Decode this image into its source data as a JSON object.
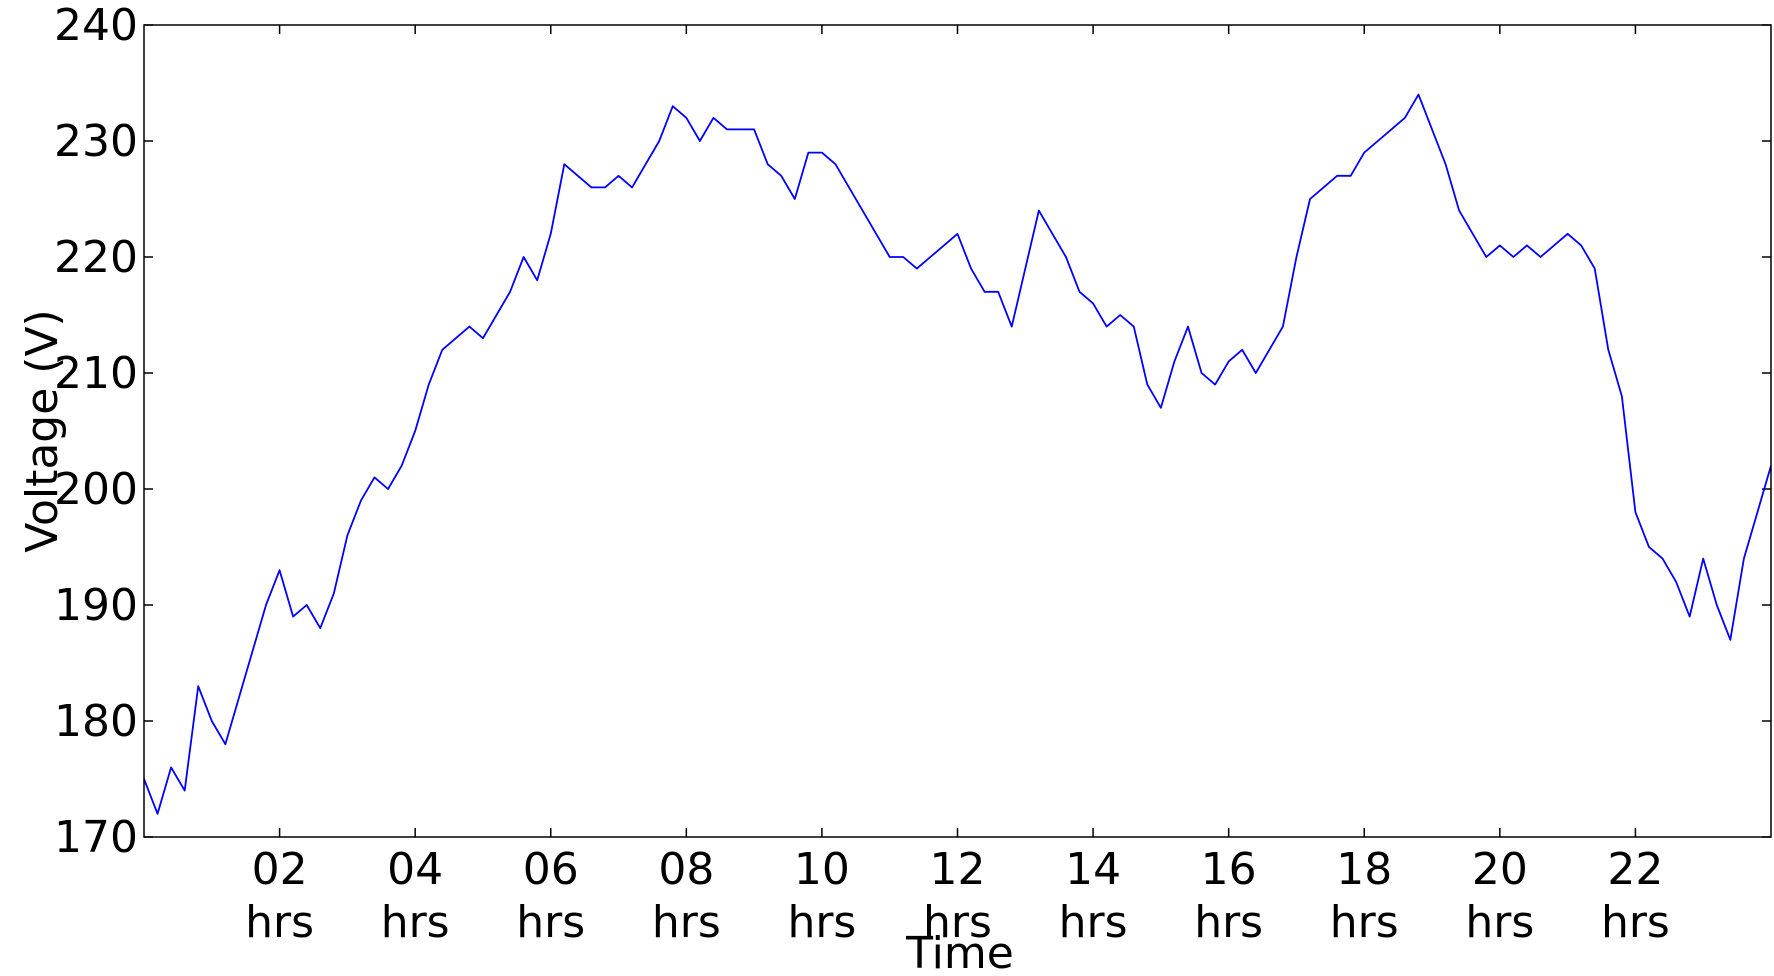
{
  "chart_data": {
    "type": "line",
    "x_label": "Time",
    "y_label": "Voltage (V)",
    "x": [
      0,
      0.2,
      0.4,
      0.6,
      0.8,
      1,
      1.2,
      1.4,
      1.6,
      1.8,
      2,
      2.2,
      2.4,
      2.6,
      2.8,
      3,
      3.2,
      3.4,
      3.6,
      3.8,
      4,
      4.2,
      4.4,
      4.6,
      4.8,
      5,
      5.2,
      5.4,
      5.6,
      5.8,
      6,
      6.2,
      6.4,
      6.6,
      6.8,
      7,
      7.2,
      7.4,
      7.6,
      7.8,
      8,
      8.2,
      8.4,
      8.6,
      8.8,
      9,
      9.2,
      9.4,
      9.6,
      9.8,
      10,
      10.2,
      10.4,
      10.6,
      10.8,
      11,
      11.2,
      11.4,
      11.6,
      11.8,
      12,
      12.2,
      12.4,
      12.6,
      12.8,
      13,
      13.2,
      13.4,
      13.6,
      13.8,
      14,
      14.2,
      14.4,
      14.6,
      14.8,
      15,
      15.2,
      15.4,
      15.6,
      15.8,
      16,
      16.2,
      16.4,
      16.6,
      16.8,
      17,
      17.2,
      17.4,
      17.6,
      17.8,
      18,
      18.2,
      18.4,
      18.6,
      18.8,
      19,
      19.2,
      19.4,
      19.6,
      19.8,
      20,
      20.2,
      20.4,
      20.6,
      20.8,
      21,
      21.2,
      21.4,
      21.6,
      21.8,
      22,
      22.2,
      22.4,
      22.6,
      22.8,
      23,
      23.2,
      23.4,
      23.6,
      23.8,
      24
    ],
    "series": [
      {
        "name": "Voltage",
        "color": "#0000ff",
        "values": [
          175,
          172,
          176,
          174,
          183,
          180,
          178,
          182,
          186,
          190,
          193,
          189,
          190,
          188,
          191,
          196,
          199,
          201,
          200,
          202,
          205,
          209,
          212,
          213,
          214,
          213,
          215,
          217,
          220,
          218,
          222,
          228,
          227,
          226,
          226,
          227,
          226,
          228,
          230,
          233,
          232,
          230,
          232,
          231,
          231,
          231,
          228,
          227,
          225,
          229,
          229,
          228,
          226,
          224,
          222,
          220,
          220,
          219,
          220,
          221,
          222,
          219,
          217,
          217,
          214,
          219,
          224,
          222,
          220,
          217,
          216,
          214,
          215,
          214,
          209,
          207,
          211,
          214,
          210,
          209,
          211,
          212,
          210,
          212,
          214,
          220,
          225,
          226,
          227,
          227,
          229,
          230,
          231,
          232,
          234,
          231,
          228,
          224,
          222,
          220,
          221,
          220,
          221,
          220,
          221,
          222,
          221,
          219,
          212,
          208,
          198,
          195,
          194,
          192,
          189,
          194,
          190,
          187,
          194,
          198,
          202
        ]
      }
    ],
    "xlim": [
      0,
      24
    ],
    "xticks": [
      {
        "value": 2,
        "label": "02 hrs"
      },
      {
        "value": 4,
        "label": "04 hrs"
      },
      {
        "value": 6,
        "label": "06 hrs"
      },
      {
        "value": 8,
        "label": "08 hrs"
      },
      {
        "value": 10,
        "label": "10 hrs"
      },
      {
        "value": 12,
        "label": "12 hrs"
      },
      {
        "value": 14,
        "label": "14 hrs"
      },
      {
        "value": 16,
        "label": "16 hrs"
      },
      {
        "value": 18,
        "label": "18 hrs"
      },
      {
        "value": 20,
        "label": "20 hrs"
      },
      {
        "value": 22,
        "label": "22 hrs"
      }
    ],
    "ylim": [
      170,
      240
    ],
    "yticks": [
      170,
      180,
      190,
      200,
      210,
      220,
      230,
      240
    ],
    "grid": false
  }
}
